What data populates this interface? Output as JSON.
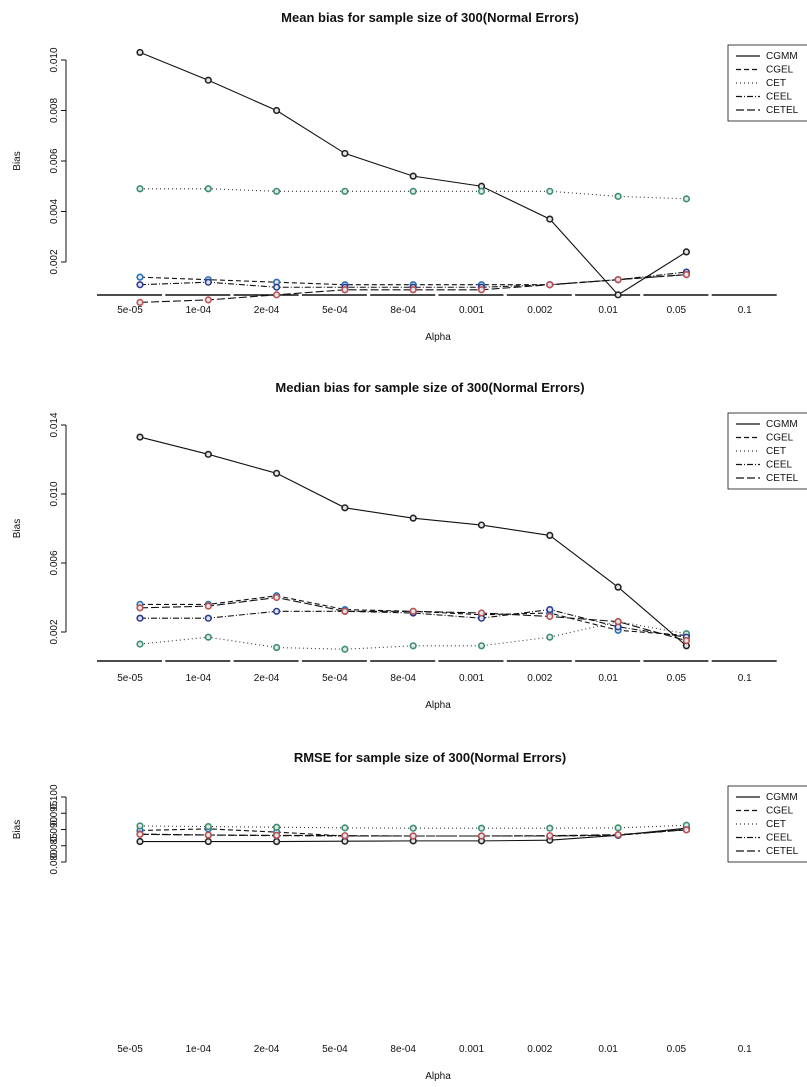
{
  "chart_data": [
    {
      "type": "line",
      "title": "Mean bias for sample size of 300(Normal Errors)",
      "xlabel": "Alpha",
      "ylabel": "Bias",
      "categories": [
        "5e-05",
        "1e-04",
        "2e-04",
        "5e-04",
        "8e-04",
        "0.001",
        "0.002",
        "0.01",
        "0.05",
        "0.1"
      ],
      "yticks": [
        "0.002",
        "0.004",
        "0.006",
        "0.008",
        "0.010"
      ],
      "ylim": [
        0.0,
        0.0105
      ],
      "legend_position": "top-right",
      "series": [
        {
          "name": "CGMM",
          "values": [
            0.0103,
            0.0092,
            0.008,
            0.0063,
            0.0054,
            0.005,
            0.0037,
            0.0007,
            0.0024,
            0.0035
          ]
        },
        {
          "name": "CGEL",
          "values": [
            0.0014,
            0.0013,
            0.0012,
            0.0011,
            0.0011,
            0.0011,
            0.0011,
            0.0013,
            0.0015,
            0.0019
          ]
        },
        {
          "name": "CET",
          "values": [
            0.0049,
            0.0049,
            0.0048,
            0.0048,
            0.0048,
            0.0048,
            0.0048,
            0.0046,
            0.0045,
            0.0047
          ]
        },
        {
          "name": "CEEL",
          "values": [
            0.0011,
            0.0012,
            0.001,
            0.001,
            0.001,
            0.001,
            0.0011,
            0.0013,
            0.0016,
            0.0019
          ]
        },
        {
          "name": "CETEL",
          "values": [
            0.0004,
            0.0005,
            0.0007,
            0.0009,
            0.0009,
            0.0009,
            0.0011,
            0.0013,
            0.0015,
            0.0019
          ]
        }
      ],
      "legend": [
        "CGMM",
        "CGEL",
        "CET",
        "CEEL",
        "CETEL"
      ]
    },
    {
      "type": "line",
      "title": "Median bias for sample size of 300(Normal Errors)",
      "xlabel": "Alpha",
      "ylabel": "Bias",
      "categories": [
        "5e-05",
        "1e-04",
        "2e-04",
        "5e-04",
        "8e-04",
        "0.001",
        "0.002",
        "0.01",
        "0.05",
        "0.1"
      ],
      "yticks": [
        "0.002",
        "0.006",
        "0.010",
        "0.014"
      ],
      "ylim": [
        0.0,
        0.014
      ],
      "legend_position": "top-right",
      "series": [
        {
          "name": "CGMM",
          "values": [
            0.0133,
            0.0123,
            0.0112,
            0.0092,
            0.0086,
            0.0082,
            0.0076,
            0.0046,
            0.0012,
            0.0001
          ]
        },
        {
          "name": "CGEL",
          "values": [
            0.0036,
            0.0036,
            0.0041,
            0.0033,
            0.0032,
            0.003,
            0.0031,
            0.0021,
            0.0018,
            0.0011
          ]
        },
        {
          "name": "CET",
          "values": [
            0.0013,
            0.0017,
            0.0011,
            0.001,
            0.0012,
            0.0012,
            0.0017,
            0.0026,
            0.0019,
            0.0017
          ]
        },
        {
          "name": "CEEL",
          "values": [
            0.0028,
            0.0028,
            0.0032,
            0.0032,
            0.0031,
            0.0028,
            0.0033,
            0.0023,
            0.0017,
            0.0011
          ]
        },
        {
          "name": "CETEL",
          "values": [
            0.0034,
            0.0035,
            0.004,
            0.0032,
            0.0032,
            0.0031,
            0.0029,
            0.0026,
            0.0015,
            0.001
          ]
        }
      ],
      "legend": [
        "CGMM",
        "CGEL",
        "CET",
        "CEEL",
        "CETEL"
      ]
    },
    {
      "type": "line",
      "title": "RMSE for sample size of 300(Normal Errors)",
      "xlabel": "Alpha",
      "ylabel": "Bias",
      "categories": [
        "5e-05",
        "1e-04",
        "2e-04",
        "5e-04",
        "8e-04",
        "0.001",
        "0.002",
        "0.01",
        "0.05",
        "0.1"
      ],
      "yticks": [
        "0.080",
        "0.085",
        "0.090",
        "0.095",
        "0.100"
      ],
      "ylim": [
        0.08,
        0.1
      ],
      "legend_position": "top-right",
      "series": [
        {
          "name": "CGMM",
          "values": [
            0.0863,
            0.0863,
            0.0863,
            0.0864,
            0.0865,
            0.0865,
            0.0867,
            0.0882,
            0.0904,
            0.091
          ]
        },
        {
          "name": "CGEL",
          "values": [
            0.0897,
            0.0902,
            0.0892,
            0.088,
            0.088,
            0.088,
            0.088,
            0.0882,
            0.09,
            0.0905
          ]
        },
        {
          "name": "CET",
          "values": [
            0.0911,
            0.0909,
            0.0907,
            0.0905,
            0.0904,
            0.0904,
            0.0904,
            0.0905,
            0.0913,
            0.0918
          ]
        },
        {
          "name": "CEEL",
          "values": [
            0.0886,
            0.0883,
            0.0881,
            0.088,
            0.088,
            0.088,
            0.088,
            0.0883,
            0.0899,
            0.0904
          ]
        },
        {
          "name": "CETEL",
          "values": [
            0.0885,
            0.0883,
            0.0882,
            0.0881,
            0.088,
            0.088,
            0.0881,
            0.0884,
            0.0899,
            0.0904
          ]
        }
      ],
      "legend": [
        "CGMM",
        "CGEL",
        "CET",
        "CEEL",
        "CETEL"
      ]
    }
  ],
  "styles": {
    "CGMM": {
      "color": "#111111",
      "dash": "",
      "marker": "#222222"
    },
    "CGEL": {
      "color": "#111111",
      "dash": "5,3",
      "marker": "#2a6fb0"
    },
    "CET": {
      "color": "#333333",
      "dash": "1,3",
      "marker": "#3a8f6a"
    },
    "CEEL": {
      "color": "#111111",
      "dash": "6,2,1,2",
      "marker": "#2a3a8f"
    },
    "CETEL": {
      "color": "#111111",
      "dash": "8,3",
      "marker": "#c0504d"
    }
  }
}
